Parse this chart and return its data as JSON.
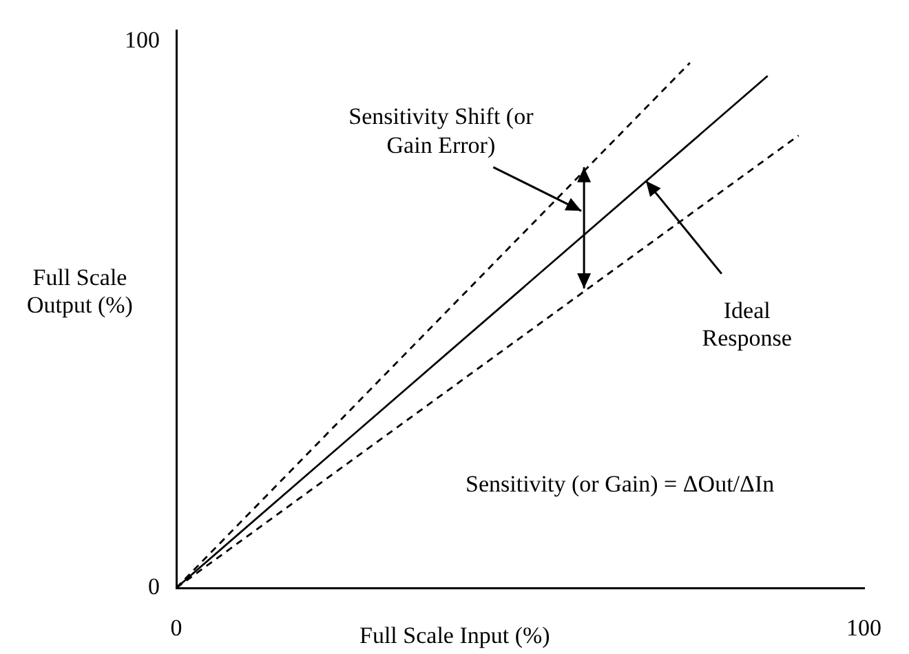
{
  "chart_data": {
    "type": "line",
    "xlabel": "Full Scale Input (%)",
    "ylabel": "Full Scale Output (%)",
    "xlim": [
      0,
      100
    ],
    "ylim": [
      0,
      102
    ],
    "xticks": [
      0,
      100
    ],
    "yticks": [
      0,
      100
    ],
    "grid": false,
    "legend": false,
    "marker": "none",
    "series": [
      {
        "color": "#000000",
        "line_style": "dashed",
        "x": [
          0,
          74.7
        ],
        "values": [
          0,
          96.1
        ]
      },
      {
        "color": "#000000",
        "line_style": "solid",
        "x": [
          0,
          86
        ],
        "values": [
          0,
          93.7
        ]
      },
      {
        "color": "#000000",
        "line_style": "dashed",
        "x": [
          0,
          90.5
        ],
        "values": [
          0,
          82.8
        ]
      }
    ],
    "annotations": [
      "Sensitivity Shift (or Gain Error)",
      {
        "text": "Ideal Response",
        "x": 68.3,
        "y": 74.5
      },
      "Sensitivity (or Gain) = ΔOut/ΔIn"
    ]
  }
}
